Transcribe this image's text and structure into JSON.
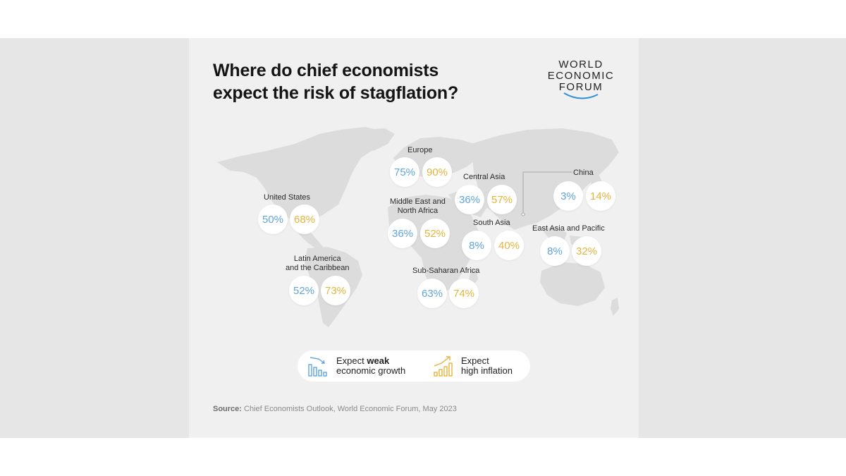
{
  "title": {
    "line1": "Where do chief economists",
    "line2": "expect the risk of stagflation?"
  },
  "logo": {
    "line1": "WORLD",
    "line2": "ECONOMIC",
    "line3": "FORUM"
  },
  "regions": [
    {
      "id": "united-states",
      "label": [
        "United States"
      ],
      "weak_growth": "50%",
      "high_inflation": "68%"
    },
    {
      "id": "latin-america",
      "label": [
        "Latin America",
        "and the Caribbean"
      ],
      "weak_growth": "52%",
      "high_inflation": "73%"
    },
    {
      "id": "europe",
      "label": [
        "Europe"
      ],
      "weak_growth": "75%",
      "high_inflation": "90%"
    },
    {
      "id": "middle-east",
      "label": [
        "Middle East and",
        "North Africa"
      ],
      "weak_growth": "36%",
      "high_inflation": "52%"
    },
    {
      "id": "sub-saharan-africa",
      "label": [
        "Sub-Saharan Africa"
      ],
      "weak_growth": "63%",
      "high_inflation": "74%"
    },
    {
      "id": "central-asia",
      "label": [
        "Central Asia"
      ],
      "weak_growth": "36%",
      "high_inflation": "57%"
    },
    {
      "id": "south-asia",
      "label": [
        "South Asia"
      ],
      "weak_growth": "8%",
      "high_inflation": "40%"
    },
    {
      "id": "china",
      "label": [
        "China"
      ],
      "weak_growth": "3%",
      "high_inflation": "14%"
    },
    {
      "id": "east-asia-pacific",
      "label": [
        "East Asia and Pacific"
      ],
      "weak_growth": "8%",
      "high_inflation": "32%"
    }
  ],
  "legend": {
    "weak_growth": {
      "prefix": "Expect",
      "emphasis": "weak",
      "line2": "economic growth",
      "icon": "declining-bars-icon"
    },
    "high_inflation": {
      "line1": "Expect",
      "line2": "high inflation",
      "icon": "rising-bars-icon"
    }
  },
  "source": {
    "label": "Source:",
    "text": "Chief Economists Outlook, World Economic Forum, May 2023"
  },
  "colors": {
    "weak_growth": "#5fa5dd",
    "high_inflation": "#e6b43c",
    "map_land": "#dcdcdd",
    "card_bg": "#f0f0f1"
  }
}
